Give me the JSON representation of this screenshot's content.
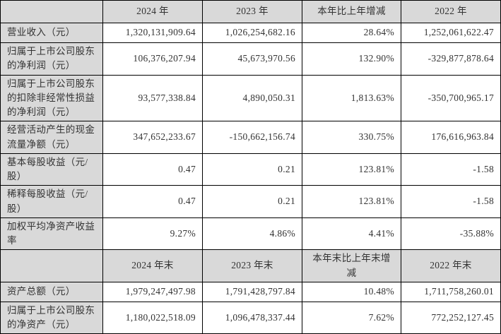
{
  "colors": {
    "header_bg": "#d9d9d9",
    "cell_bg": "#ffffff",
    "border": "#000000",
    "text": "#333333"
  },
  "table": {
    "sections": [
      {
        "header": [
          "",
          "2024 年",
          "2023 年",
          "本年比上年增减",
          "2022 年"
        ],
        "rows": [
          {
            "label": "营业收入（元）",
            "values": [
              "1,320,131,909.64",
              "1,026,254,682.16",
              "28.64%",
              "1,252,061,622.47"
            ]
          },
          {
            "label": "归属于上市公司股东的净利润（元）",
            "values": [
              "106,376,207.94",
              "45,673,970.56",
              "132.90%",
              "-329,877,878.64"
            ]
          },
          {
            "label": "归属于上市公司股东的扣除非经常性损益的净利润（元）",
            "values": [
              "93,577,338.84",
              "4,890,050.31",
              "1,813.63%",
              "-350,700,965.17"
            ]
          },
          {
            "label": "经营活动产生的现金流量净额（元）",
            "values": [
              "347,652,233.67",
              "-150,662,156.74",
              "330.75%",
              "176,616,963.84"
            ]
          },
          {
            "label": "基本每股收益（元/股）",
            "values": [
              "0.47",
              "0.21",
              "123.81%",
              "-1.58"
            ]
          },
          {
            "label": "稀释每股收益（元/股）",
            "values": [
              "0.47",
              "0.21",
              "123.81%",
              "-1.58"
            ]
          },
          {
            "label": "加权平均净资产收益率",
            "values": [
              "9.27%",
              "4.86%",
              "4.41%",
              "-35.88%"
            ]
          }
        ]
      },
      {
        "header": [
          "",
          "2024 年末",
          "2023 年末",
          "本年末比上年末增减",
          "2022 年末"
        ],
        "rows": [
          {
            "label": "资产总额（元）",
            "values": [
              "1,979,247,497.98",
              "1,791,428,797.84",
              "10.48%",
              "1,711,758,260.01"
            ]
          },
          {
            "label": "归属于上市公司股东的净资产（元）",
            "values": [
              "1,180,022,518.09",
              "1,096,478,337.44",
              "7.62%",
              "772,252,127.45"
            ]
          }
        ]
      }
    ]
  }
}
